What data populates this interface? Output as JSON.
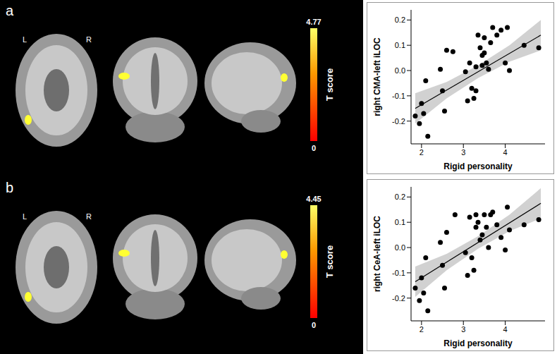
{
  "chart_data": [
    {
      "type": "scatter",
      "panel": "a",
      "xlabel": "Rigid personality",
      "ylabel": "right CMA-left iLOC",
      "xlim": [
        1.75,
        4.95
      ],
      "xticks": [
        2,
        3,
        4
      ],
      "ylim": [
        -0.29,
        0.24
      ],
      "yticks": [
        -0.2,
        -0.1,
        {
          "value": 0,
          "label": "0.0"
        },
        0.1,
        0.2
      ],
      "color": "#000000",
      "x": [
        1.85,
        1.95,
        2.0,
        2.05,
        2.1,
        2.15,
        2.45,
        2.5,
        2.55,
        2.6,
        2.75,
        3.05,
        3.1,
        3.15,
        3.2,
        3.25,
        3.3,
        3.3,
        3.35,
        3.4,
        3.45,
        3.45,
        3.5,
        3.5,
        3.55,
        3.6,
        3.65,
        3.7,
        3.8,
        3.9,
        4.0,
        4.05,
        4.1,
        4.45,
        4.8
      ],
      "values": [
        -0.18,
        -0.21,
        -0.13,
        -0.17,
        -0.04,
        -0.26,
        0.005,
        -0.08,
        -0.16,
        0.08,
        0.075,
        -0.005,
        -0.12,
        0.03,
        -0.07,
        -0.11,
        -0.08,
        0.015,
        0.14,
        0.09,
        0.06,
        0.02,
        0.07,
        0.13,
        0.03,
        0.005,
        0.11,
        0.17,
        0.14,
        0.16,
        0.03,
        0.17,
        0.0,
        0.1,
        0.09
      ],
      "fit": {
        "x": [
          1.85,
          4.85
        ],
        "values": [
          -0.15,
          0.14
        ]
      },
      "band": {
        "x": [
          1.85,
          2.6,
          3.35,
          4.1,
          4.85
        ],
        "lower": [
          -0.21,
          -0.11,
          -0.03,
          0.035,
          0.08
        ],
        "upper": [
          -0.09,
          -0.045,
          0.02,
          0.1,
          0.2
        ]
      },
      "brain_labels": [
        "L",
        "R"
      ],
      "colorbar": {
        "label": "T score",
        "range": [
          0,
          4.77
        ],
        "ticks": [
          0,
          4.77
        ]
      }
    },
    {
      "type": "scatter",
      "panel": "b",
      "xlabel": "Rigid personality",
      "ylabel": "right CeA-left iLOC",
      "xlim": [
        1.75,
        4.95
      ],
      "xticks": [
        2,
        3,
        4
      ],
      "ylim": [
        -0.29,
        0.24
      ],
      "yticks": [
        -0.2,
        -0.1,
        {
          "value": 0,
          "label": "0.0"
        },
        0.1,
        0.2
      ],
      "color": "#000000",
      "x": [
        1.85,
        1.95,
        2.0,
        2.05,
        2.1,
        2.15,
        2.45,
        2.5,
        2.55,
        2.6,
        2.8,
        3.05,
        3.1,
        3.15,
        3.2,
        3.25,
        3.3,
        3.3,
        3.35,
        3.4,
        3.45,
        3.5,
        3.55,
        3.6,
        3.65,
        3.7,
        3.8,
        3.9,
        4.0,
        4.05,
        4.1,
        4.45,
        4.8
      ],
      "values": [
        -0.16,
        -0.21,
        -0.12,
        -0.18,
        -0.04,
        -0.25,
        0.02,
        -0.07,
        -0.16,
        0.06,
        0.13,
        -0.02,
        -0.11,
        0.12,
        -0.04,
        -0.09,
        0.13,
        0.08,
        0.1,
        0.03,
        0.05,
        0.13,
        0.08,
        0.0,
        0.13,
        0.14,
        0.09,
        0.04,
        -0.01,
        0.16,
        0.07,
        0.09,
        0.11
      ],
      "fit": {
        "x": [
          1.85,
          4.85
        ],
        "values": [
          -0.135,
          0.175
        ]
      },
      "band": {
        "x": [
          1.85,
          2.6,
          3.35,
          4.1,
          4.85
        ],
        "lower": [
          -0.195,
          -0.09,
          -0.005,
          0.065,
          0.115
        ],
        "upper": [
          -0.075,
          -0.025,
          0.045,
          0.13,
          0.235
        ]
      },
      "brain_labels": [
        "L",
        "R"
      ],
      "colorbar": {
        "label": "T score",
        "range": [
          0,
          4.45
        ],
        "ticks": [
          0,
          4.45
        ]
      }
    }
  ]
}
